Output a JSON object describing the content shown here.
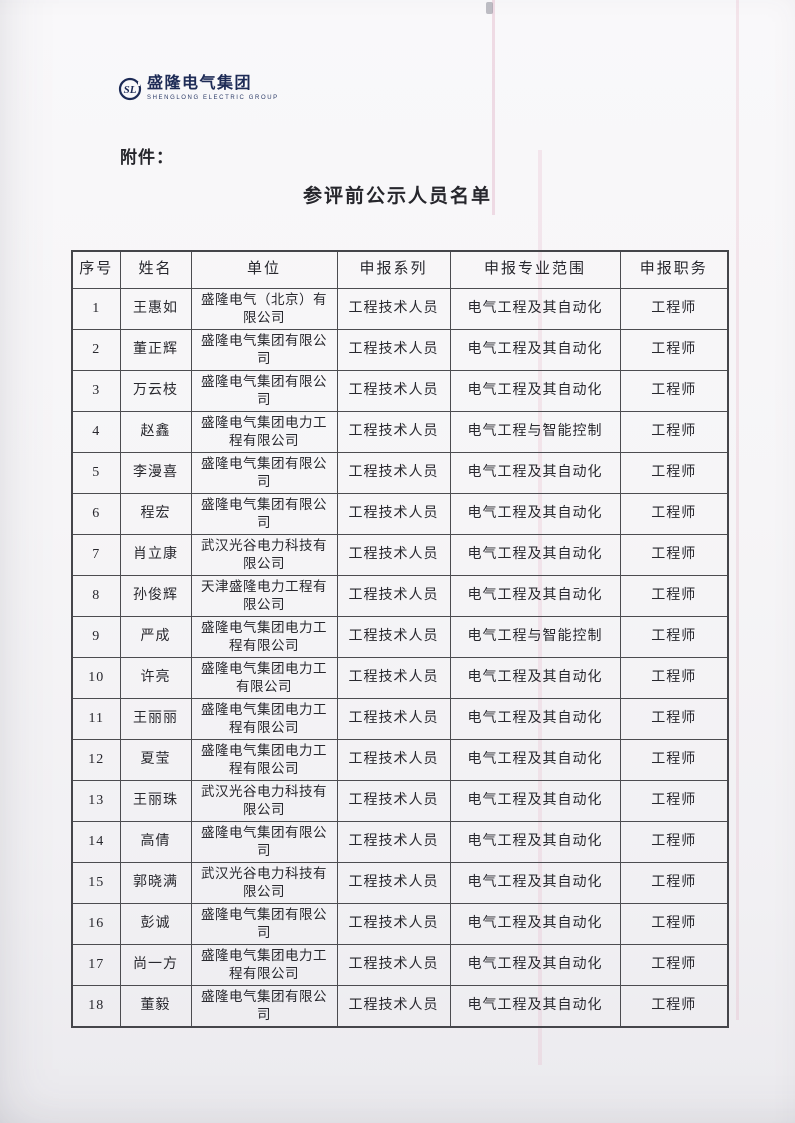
{
  "logo": {
    "name_cn": "盛隆电气集团",
    "name_en": "SHENGLONG ELECTRIC GROUP",
    "icon": "shenglong-circle-monogram",
    "color_navy": "#1d2b56"
  },
  "attachment_label": "附件：",
  "title": "参评前公示人员名单",
  "table": {
    "headers": [
      "序号",
      "姓名",
      "单位",
      "申报系列",
      "申报专业范围",
      "申报职务"
    ],
    "rows": [
      [
        "1",
        "王惠如",
        "盛隆电气（北京）有限公司",
        "工程技术人员",
        "电气工程及其自动化",
        "工程师"
      ],
      [
        "2",
        "董正辉",
        "盛隆电气集团有限公司",
        "工程技术人员",
        "电气工程及其自动化",
        "工程师"
      ],
      [
        "3",
        "万云枝",
        "盛隆电气集团有限公司",
        "工程技术人员",
        "电气工程及其自动化",
        "工程师"
      ],
      [
        "4",
        "赵鑫",
        "盛隆电气集团电力工程有限公司",
        "工程技术人员",
        "电气工程与智能控制",
        "工程师"
      ],
      [
        "5",
        "李漫喜",
        "盛隆电气集团有限公司",
        "工程技术人员",
        "电气工程及其自动化",
        "工程师"
      ],
      [
        "6",
        "程宏",
        "盛隆电气集团有限公司",
        "工程技术人员",
        "电气工程及其自动化",
        "工程师"
      ],
      [
        "7",
        "肖立康",
        "武汉光谷电力科技有限公司",
        "工程技术人员",
        "电气工程及其自动化",
        "工程师"
      ],
      [
        "8",
        "孙俊辉",
        "天津盛隆电力工程有限公司",
        "工程技术人员",
        "电气工程及其自动化",
        "工程师"
      ],
      [
        "9",
        "严成",
        "盛隆电气集团电力工程有限公司",
        "工程技术人员",
        "电气工程与智能控制",
        "工程师"
      ],
      [
        "10",
        "许亮",
        "盛隆电气集团电力工有限公司",
        "工程技术人员",
        "电气工程及其自动化",
        "工程师"
      ],
      [
        "11",
        "王丽丽",
        "盛隆电气集团电力工程有限公司",
        "工程技术人员",
        "电气工程及其自动化",
        "工程师"
      ],
      [
        "12",
        "夏莹",
        "盛隆电气集团电力工程有限公司",
        "工程技术人员",
        "电气工程及其自动化",
        "工程师"
      ],
      [
        "13",
        "王丽珠",
        "武汉光谷电力科技有限公司",
        "工程技术人员",
        "电气工程及其自动化",
        "工程师"
      ],
      [
        "14",
        "高倩",
        "盛隆电气集团有限公司",
        "工程技术人员",
        "电气工程及其自动化",
        "工程师"
      ],
      [
        "15",
        "郭晓满",
        "武汉光谷电力科技有限公司",
        "工程技术人员",
        "电气工程及其自动化",
        "工程师"
      ],
      [
        "16",
        "彭诚",
        "盛隆电气集团有限公司",
        "工程技术人员",
        "电气工程及其自动化",
        "工程师"
      ],
      [
        "17",
        "尚一方",
        "盛隆电气集团电力工程有限公司",
        "工程技术人员",
        "电气工程及其自动化",
        "工程师"
      ],
      [
        "18",
        "董毅",
        "盛隆电气集团有限公司",
        "工程技术人员",
        "电气工程及其自动化",
        "工程师"
      ]
    ]
  },
  "colors": {
    "paper": "#f6f5f7",
    "ink": "#26262c",
    "table_border": "#4c4c50",
    "logo_navy": "#1d2b56",
    "scan_artifact_pink": "#e3a8bd"
  }
}
